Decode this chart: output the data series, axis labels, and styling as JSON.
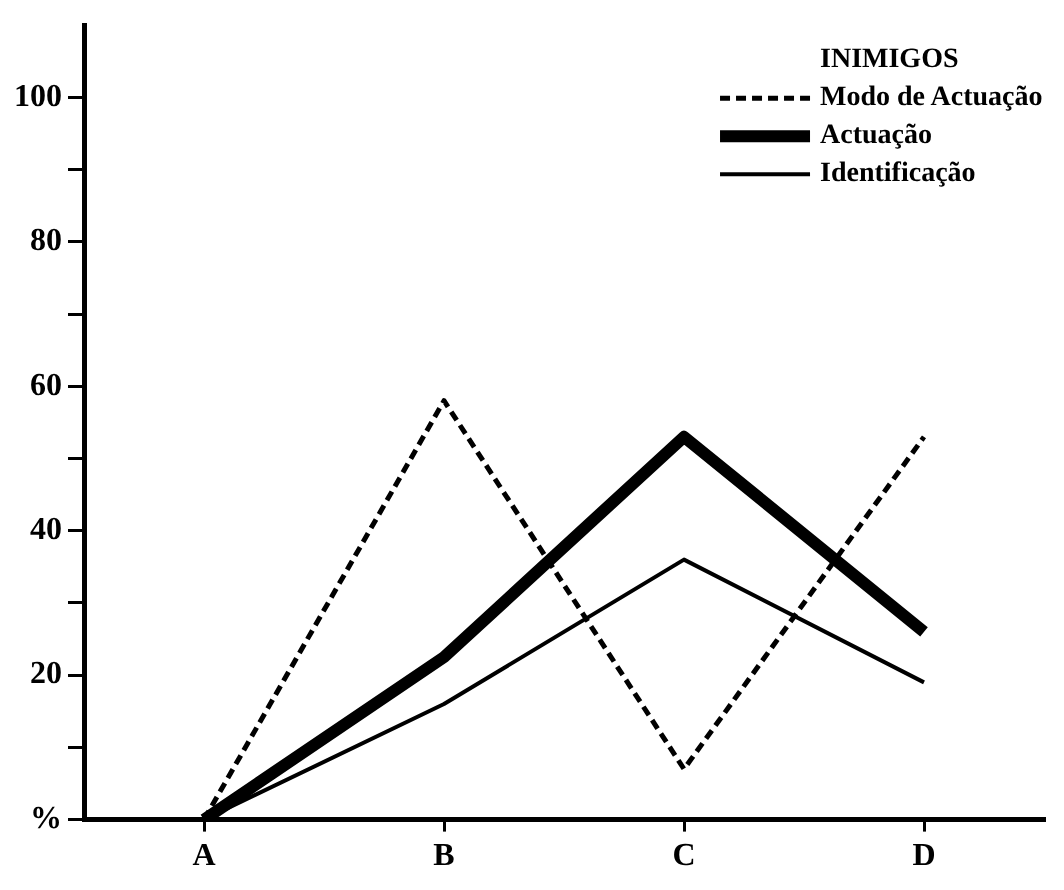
{
  "chart_data": {
    "type": "line",
    "legend_title": "INIMIGOS",
    "ylabel": null,
    "categories": [
      "A",
      "B",
      "C",
      "D"
    ],
    "series": [
      {
        "name": "Modo de Actuação",
        "color": "#000000",
        "line_style": "dashed",
        "values": [
          0,
          58,
          7,
          53
        ]
      },
      {
        "name": "Actuação",
        "color": "#000000",
        "line_style": "solid",
        "values": [
          0,
          22.5,
          53,
          26
        ]
      },
      {
        "name": "Identificação",
        "color": "#000000",
        "line_style": "solid",
        "values": [
          0,
          16,
          36,
          19
        ]
      }
    ],
    "ylim": [
      0,
      110
    ],
    "yticks": [
      {
        "value": 0,
        "label": "%"
      },
      {
        "value": 10,
        "label": null
      },
      20,
      {
        "value": 30,
        "label": null
      },
      40,
      {
        "value": 50,
        "label": null
      },
      60,
      {
        "value": 70,
        "label": null
      },
      80,
      {
        "value": 90,
        "label": null
      },
      100
    ],
    "grid": false,
    "legend": "top right",
    "marker": "none"
  }
}
